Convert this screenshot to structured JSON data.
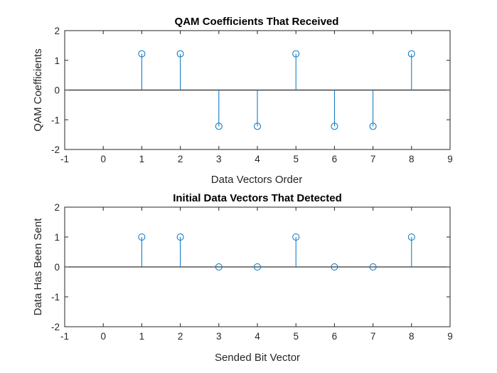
{
  "window": {
    "width": 699,
    "height": 524
  },
  "colors": {
    "stem": "#0072BD",
    "axis": "#262626",
    "baseline": "#000000",
    "background": "#ffffff"
  },
  "chart_data": [
    {
      "type": "stem",
      "title": "QAM Coefficients That Received",
      "xlabel": "Data Vectors Order",
      "ylabel": "QAM Coefficients",
      "xlim": [
        -1,
        9
      ],
      "ylim": [
        -2,
        2
      ],
      "xticks": [
        "-1",
        "0",
        "1",
        "2",
        "3",
        "4",
        "5",
        "6",
        "7",
        "8",
        "9"
      ],
      "yticks": [
        "-2",
        "-1",
        "0",
        "1",
        "2"
      ],
      "grid": false,
      "x": [
        1,
        2,
        3,
        4,
        5,
        6,
        7,
        8
      ],
      "y": [
        1.22,
        1.22,
        -1.22,
        -1.22,
        1.22,
        -1.22,
        -1.22,
        1.22
      ]
    },
    {
      "type": "stem",
      "title": "Initial Data Vectors That Detected",
      "xlabel": "Sended Bit Vector",
      "ylabel": "Data Has Been Sent",
      "xlim": [
        -1,
        9
      ],
      "ylim": [
        -2,
        2
      ],
      "xticks": [
        "-1",
        "0",
        "1",
        "2",
        "3",
        "4",
        "5",
        "6",
        "7",
        "8",
        "9"
      ],
      "yticks": [
        "-2",
        "-1",
        "0",
        "1",
        "2"
      ],
      "grid": false,
      "x": [
        1,
        2,
        3,
        4,
        5,
        6,
        7,
        8
      ],
      "y": [
        1,
        1,
        0,
        0,
        1,
        0,
        0,
        1
      ]
    }
  ]
}
